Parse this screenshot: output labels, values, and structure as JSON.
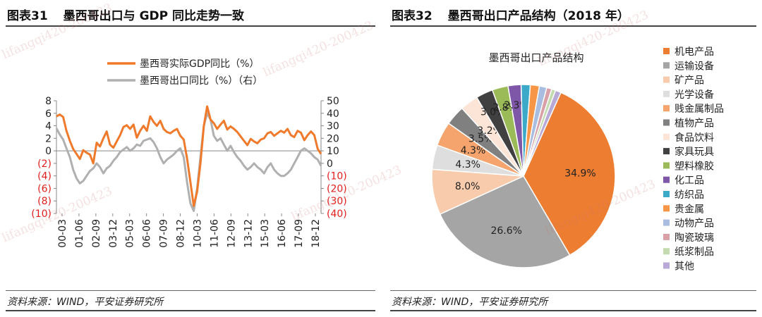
{
  "figures": [
    {
      "number": "图表31",
      "title": "墨西哥出口与 GDP 同比走势一致"
    },
    {
      "number": "图表32",
      "title": "墨西哥出口产品结构（2018 年）"
    }
  ],
  "source": "资料来源：WIND，平安证券研究所",
  "watermark_text": "lifangqi420-200423",
  "colors": {
    "orange": "#F07A2C",
    "gray": "#B0B0B0",
    "red_tick": "#E0201E",
    "rule": "#444444"
  },
  "chart_data": [
    {
      "type": "line",
      "title": "",
      "x_ticks": [
        "00-03",
        "01-06",
        "02-09",
        "03-12",
        "05-03",
        "06-06",
        "07-09",
        "08-12",
        "10-03",
        "11-06",
        "12-09",
        "13-12",
        "15-03",
        "16-06",
        "17-09",
        "18-12"
      ],
      "x_range": [
        0,
        79
      ],
      "y_left": {
        "range": [
          -10,
          8
        ],
        "ticks": [
          "8",
          "6",
          "4",
          "2",
          "0",
          "(2)",
          "(4)",
          "(6)",
          "(8)",
          "(10)"
        ]
      },
      "y_right": {
        "range": [
          -40,
          50
        ],
        "ticks": [
          "50",
          "40",
          "30",
          "20",
          "10",
          "0",
          "(10)",
          "(20)",
          "(30)",
          "(40)"
        ],
        "label": "右"
      },
      "legend_position": "top-left",
      "series": [
        {
          "name": "墨西哥实际GDP同比（%）",
          "axis": "left",
          "color": "#F07A2C",
          "values": [
            5.5,
            5.8,
            5.4,
            3.2,
            1.6,
            0.3,
            -0.5,
            -1.3,
            0.1,
            -0.3,
            -0.6,
            -2.0,
            1.3,
            0.7,
            2.0,
            3.1,
            1.0,
            0.5,
            1.5,
            2.5,
            3.8,
            4.1,
            3.5,
            4.2,
            2.1,
            3.2,
            4.0,
            3.2,
            5.5,
            4.6,
            4.0,
            4.8,
            3.5,
            3.0,
            2.8,
            3.2,
            3.5,
            2.4,
            1.8,
            -1.2,
            -5.0,
            -8.8,
            -6.5,
            -2.0,
            4.0,
            7.1,
            5.0,
            4.4,
            3.5,
            4.2,
            4.8,
            3.4,
            3.9,
            3.5,
            3.0,
            2.3,
            1.6,
            0.9,
            1.9,
            1.5,
            1.2,
            1.8,
            2.0,
            2.8,
            3.0,
            2.4,
            2.8,
            3.2,
            2.9,
            3.5,
            2.5,
            2.2,
            3.2,
            2.9,
            1.7,
            2.5,
            3.1,
            2.5,
            0.3,
            -0.5
          ]
        },
        {
          "name": "墨西哥出口同比（%）（右）",
          "axis": "right",
          "color": "#B0B0B0",
          "values": [
            28,
            23,
            19,
            12,
            5,
            -5,
            -12,
            -16,
            -14,
            -10,
            -6,
            -4,
            0,
            -3,
            -8,
            -4,
            -2,
            2,
            5,
            9,
            11,
            13,
            10,
            12,
            15,
            14,
            18,
            19,
            20,
            17,
            12,
            5,
            0,
            3,
            5,
            7,
            10,
            12,
            5,
            -15,
            -32,
            -38,
            -20,
            5,
            30,
            40,
            35,
            22,
            18,
            20,
            15,
            10,
            14,
            9,
            5,
            2,
            -2,
            -5,
            -3,
            0,
            -3,
            -5,
            -8,
            -3,
            0,
            -5,
            -8,
            -10,
            -10,
            -8,
            -5,
            0,
            5,
            10,
            12,
            10,
            8,
            5,
            3,
            -2
          ]
        }
      ]
    },
    {
      "type": "pie",
      "title": "墨西哥出口产品结构",
      "legend_position": "right",
      "slices": [
        {
          "name": "机电产品",
          "value": 34.9,
          "label": "34.9%",
          "color": "#ED7D31"
        },
        {
          "name": "运输设备",
          "value": 26.6,
          "label": "26.6%",
          "color": "#A5A5A5"
        },
        {
          "name": "矿产品",
          "value": 8.0,
          "label": "8.0%",
          "color": "#F8CBAD"
        },
        {
          "name": "光学设备",
          "value": 4.3,
          "label": "4.3%",
          "color": "#DEDEDE"
        },
        {
          "name": "贱金属制品",
          "value": 4.3,
          "label": "4.3%",
          "color": "#F4A46C"
        },
        {
          "name": "植物产品",
          "value": 3.5,
          "label": "3.5%",
          "color": "#808080"
        },
        {
          "name": "食品饮料",
          "value": 3.2,
          "label": "3.2%",
          "color": "#FCE4D6"
        },
        {
          "name": "家具玩具",
          "value": 3.0,
          "label": "3.0%",
          "color": "#404040"
        },
        {
          "name": "塑料橡胶",
          "value": 2.8,
          "label": "2.8%",
          "color": "#9BBB59"
        },
        {
          "name": "化工品",
          "value": 2.3,
          "label": "2.3%",
          "color": "#7E57A8"
        },
        {
          "name": "纺织品",
          "value": 1.6,
          "label": "",
          "color": "#3CA9C9"
        },
        {
          "name": "贵金属",
          "value": 1.6,
          "label": "",
          "color": "#F79646"
        },
        {
          "name": "动物产品",
          "value": 1.3,
          "label": "",
          "color": "#A9BDE0"
        },
        {
          "name": "陶瓷玻璃",
          "value": 0.9,
          "label": "",
          "color": "#D9A0A8"
        },
        {
          "name": "纸浆制品",
          "value": 0.7,
          "label": "",
          "color": "#C4DBB0"
        },
        {
          "name": "其他",
          "value": 1.0,
          "label": "",
          "color": "#B8A9D6"
        }
      ]
    }
  ]
}
